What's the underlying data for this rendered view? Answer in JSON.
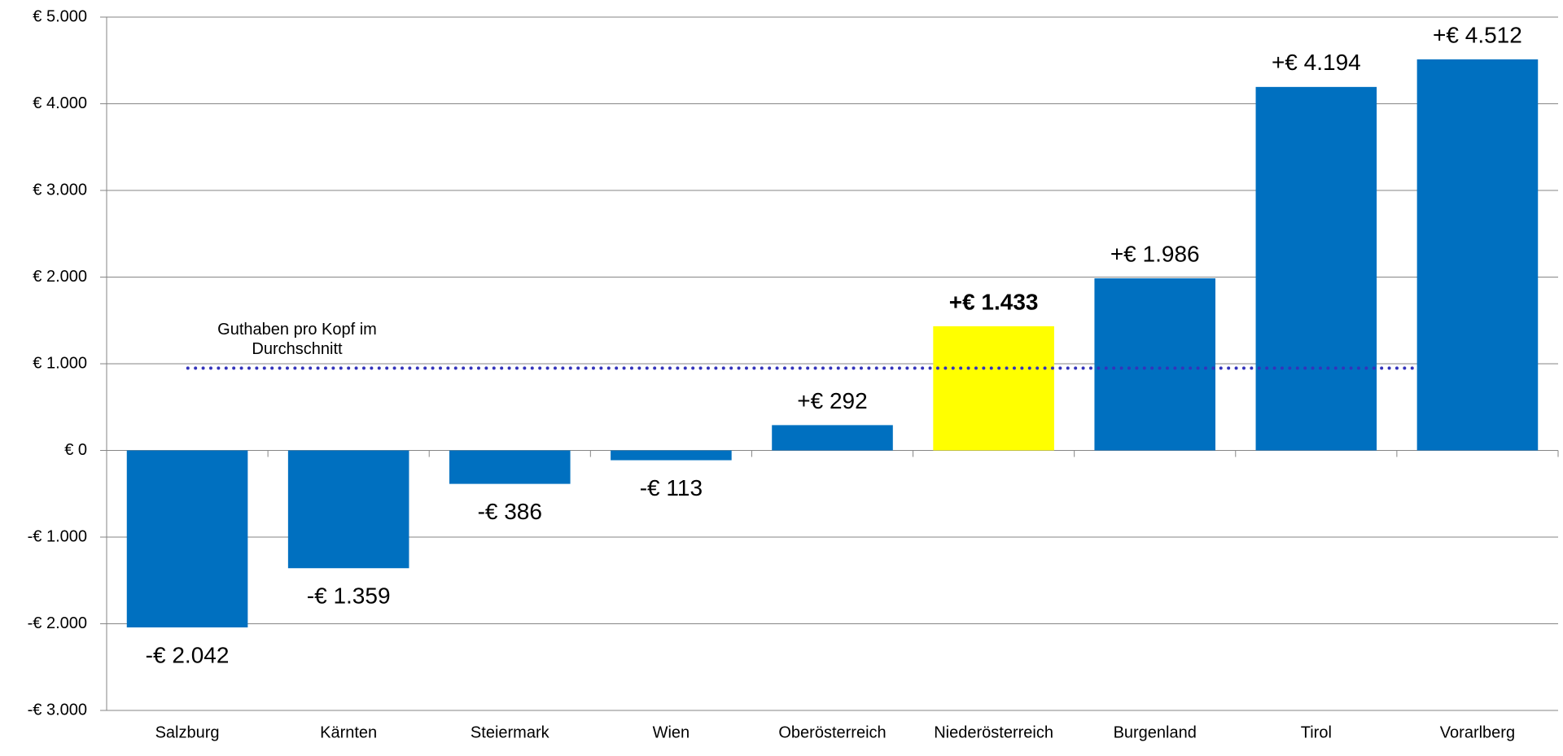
{
  "chart_data": {
    "type": "bar",
    "categories": [
      "Salzburg",
      "Kärnten",
      "Steiermark",
      "Wien",
      "Oberösterreich",
      "Niederösterreich",
      "Burgenland",
      "Tirol",
      "Vorarlberg"
    ],
    "values": [
      -2042,
      -1359,
      -386,
      -113,
      292,
      1433,
      1986,
      4194,
      4512
    ],
    "value_labels": [
      "-€ 2.042",
      "-€ 1.359",
      "-€ 386",
      "-€ 113",
      "+€ 292",
      "+€ 1.433",
      "+€ 1.986",
      "+€ 4.194",
      "+€ 4.512"
    ],
    "colors": [
      "#0070c0",
      "#0070c0",
      "#0070c0",
      "#0070c0",
      "#0070c0",
      "#ffff00",
      "#0070c0",
      "#0070c0",
      "#0070c0"
    ],
    "highlight_color": "#ffff00",
    "negative_label_color": "#ff0000",
    "ylim": [
      -3000,
      5000
    ],
    "yticks": [
      {
        "value": -3000,
        "label": "-€ 3.000"
      },
      {
        "value": -2000,
        "label": "-€ 2.000"
      },
      {
        "value": -1000,
        "label": "-€ 1.000"
      },
      {
        "value": 0,
        "label": "€ 0"
      },
      {
        "value": 1000,
        "label": "€ 1.000"
      },
      {
        "value": 2000,
        "label": "€ 2.000"
      },
      {
        "value": 3000,
        "label": "€ 3.000"
      },
      {
        "value": 4000,
        "label": "€ 4.000"
      },
      {
        "value": 5000,
        "label": "€ 5.000"
      }
    ],
    "grid": true,
    "reference_line": {
      "value": 950,
      "label": "Guthaben pro Kopf im Durchschnitt",
      "color": "#3333bb"
    }
  }
}
